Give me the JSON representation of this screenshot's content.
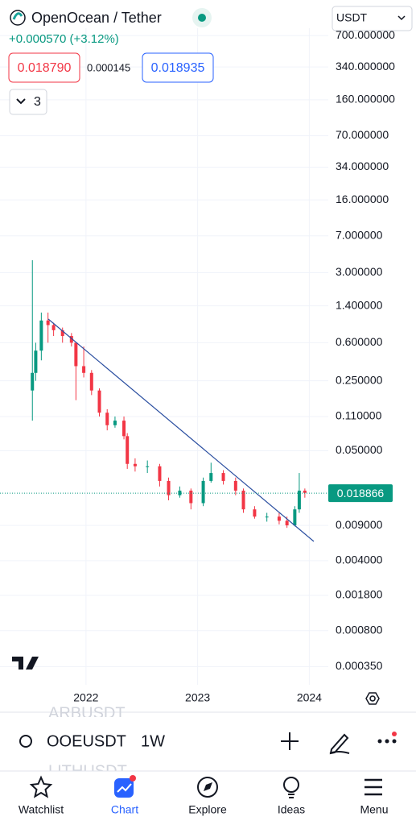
{
  "header": {
    "title": "OpenOcean / Tether",
    "change": "+0.000570 (+3.12%)",
    "bid": "0.018790",
    "spread": "0.000145",
    "ask": "0.018935",
    "indicators": "3",
    "currency": "USDT"
  },
  "chart_data": {
    "type": "candlestick",
    "log_scale": true,
    "grid": true,
    "x": [
      2021.52,
      2021.55,
      2021.6,
      2021.66,
      2021.71,
      2021.79,
      2021.87,
      2021.91,
      2021.98,
      2022.05,
      2022.12,
      2022.19,
      2022.26,
      2022.34,
      2022.37,
      2022.44,
      2022.55,
      2022.66,
      2022.74,
      2022.84,
      2022.94,
      2023.05,
      2023.12,
      2023.23,
      2023.34,
      2023.41,
      2023.51,
      2023.62,
      2023.73,
      2023.8,
      2023.87,
      2023.91,
      2023.96
    ],
    "open": [
      0.2,
      0.3,
      0.5,
      1.0,
      0.9,
      0.8,
      0.7,
      0.6,
      0.35,
      0.3,
      0.2,
      0.12,
      0.09,
      0.1,
      0.07,
      0.037,
      0.035,
      0.035,
      0.025,
      0.018,
      0.02,
      0.015,
      0.025,
      0.03,
      0.025,
      0.02,
      0.013,
      0.011,
      0.011,
      0.01,
      0.009,
      0.013,
      0.02
    ],
    "high": [
      4.0,
      0.6,
      1.2,
      1.2,
      0.95,
      0.85,
      0.75,
      0.6,
      0.55,
      0.32,
      0.21,
      0.13,
      0.11,
      0.11,
      0.075,
      0.042,
      0.04,
      0.037,
      0.027,
      0.022,
      0.021,
      0.027,
      0.038,
      0.032,
      0.027,
      0.021,
      0.014,
      0.012,
      0.012,
      0.011,
      0.014,
      0.03,
      0.021
    ],
    "low": [
      0.1,
      0.25,
      0.4,
      0.6,
      0.7,
      0.6,
      0.55,
      0.16,
      0.27,
      0.18,
      0.11,
      0.08,
      0.085,
      0.065,
      0.033,
      0.031,
      0.03,
      0.022,
      0.016,
      0.017,
      0.013,
      0.014,
      0.024,
      0.023,
      0.018,
      0.012,
      0.0105,
      0.0098,
      0.0092,
      0.0085,
      0.0088,
      0.012,
      0.017
    ],
    "close": [
      0.3,
      0.5,
      1.0,
      0.9,
      0.8,
      0.7,
      0.6,
      0.35,
      0.3,
      0.2,
      0.12,
      0.09,
      0.1,
      0.07,
      0.037,
      0.035,
      0.035,
      0.025,
      0.018,
      0.02,
      0.015,
      0.025,
      0.03,
      0.025,
      0.02,
      0.013,
      0.011,
      0.011,
      0.01,
      0.009,
      0.013,
      0.02,
      0.019
    ],
    "up_color": "#089981",
    "down_color": "#f23645",
    "xlim": [
      2021.23,
      2024.17
    ],
    "xticks": [
      2022,
      2023,
      2024
    ],
    "ylim": [
      0.00023,
      830
    ],
    "yticks": [
      {
        "value": 700,
        "label": "700.000000"
      },
      {
        "value": 340,
        "label": "340.000000"
      },
      {
        "value": 160,
        "label": "160.000000"
      },
      {
        "value": 70,
        "label": "70.000000"
      },
      {
        "value": 34,
        "label": "34.000000"
      },
      {
        "value": 16,
        "label": "16.000000"
      },
      {
        "value": 7,
        "label": "7.000000"
      },
      {
        "value": 3,
        "label": "3.000000"
      },
      {
        "value": 1.4,
        "label": "1.400000"
      },
      {
        "value": 0.6,
        "label": "0.600000"
      },
      {
        "value": 0.25,
        "label": "0.250000"
      },
      {
        "value": 0.11,
        "label": "0.110000"
      },
      {
        "value": 0.05,
        "label": "0.050000"
      },
      {
        "value": 0.009,
        "label": "0.009000"
      },
      {
        "value": 0.004,
        "label": "0.004000"
      },
      {
        "value": 0.0018,
        "label": "0.001800"
      },
      {
        "value": 0.0008,
        "label": "0.000800"
      },
      {
        "value": 0.00035,
        "label": "0.000350"
      }
    ],
    "last_price": 0.018866,
    "last_price_color": "#089981"
  },
  "symbol_bar": {
    "previous": "ARBUSDT",
    "symbol": "OOEUSDT",
    "interval": "1W",
    "next": "LITHUSDT"
  },
  "nav": [
    "Watchlist",
    "Chart",
    "Explore",
    "Ideas",
    "Menu"
  ]
}
